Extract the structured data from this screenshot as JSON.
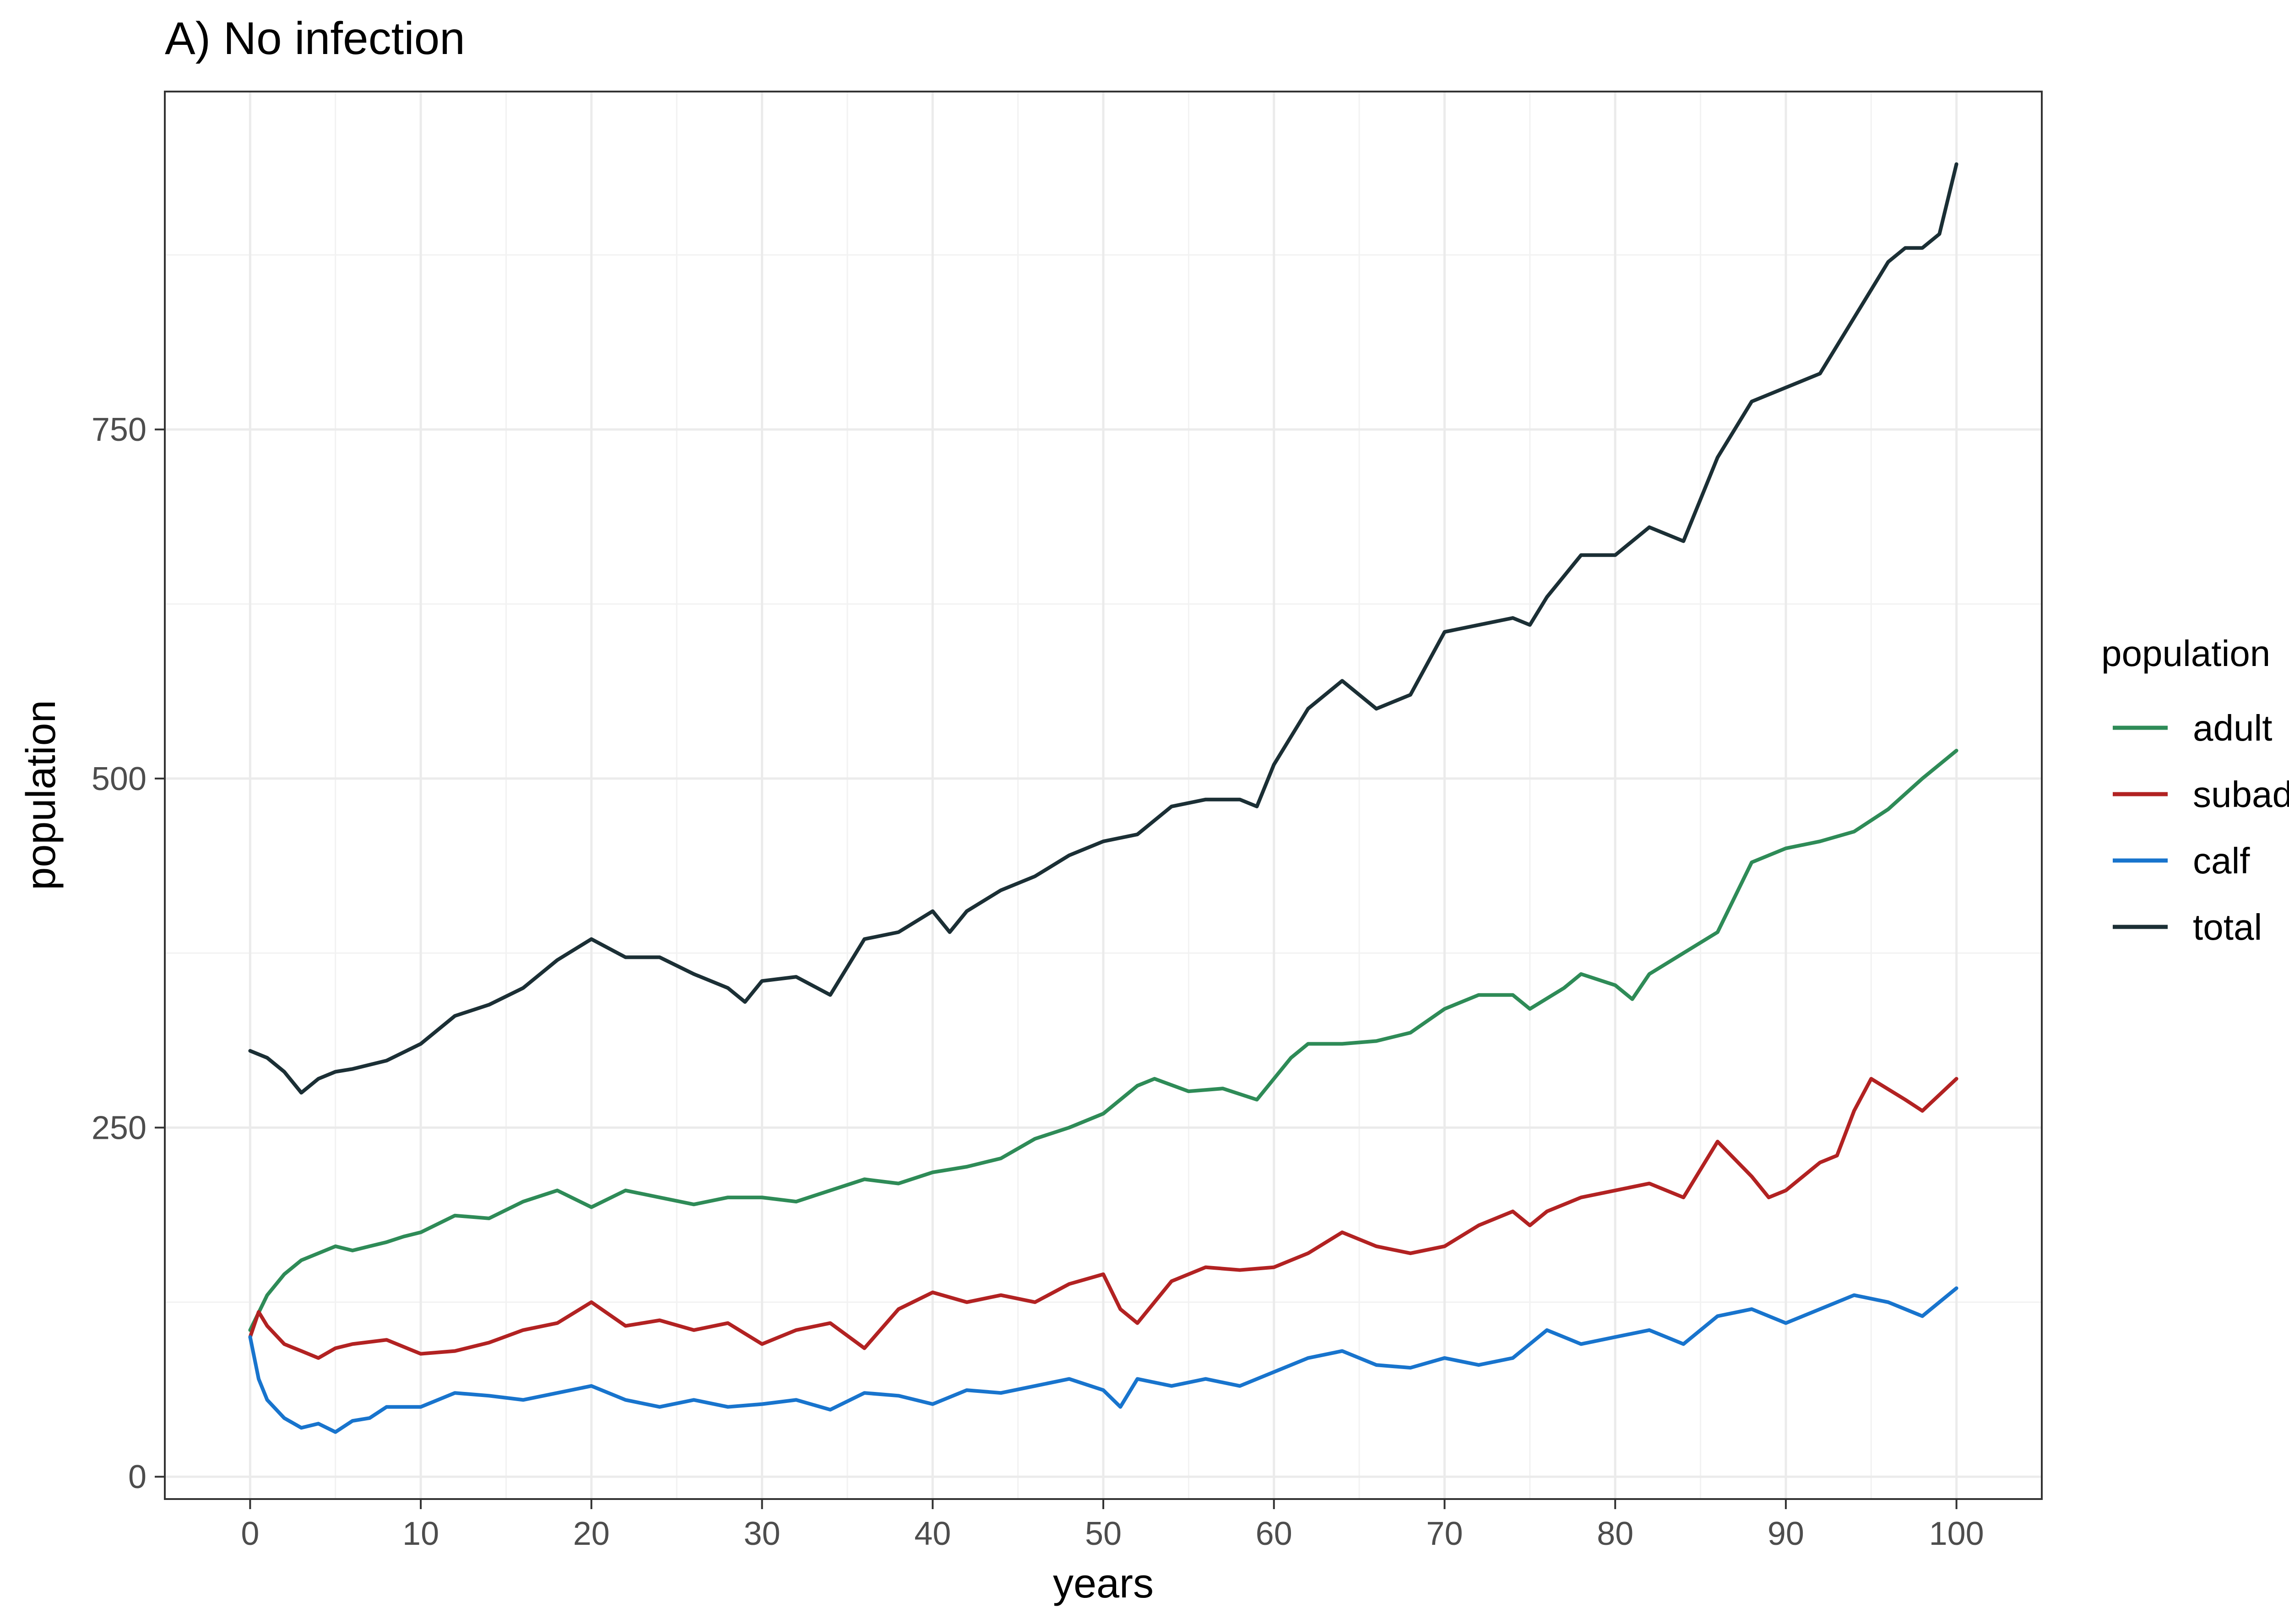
{
  "chart_data": {
    "type": "line",
    "title": "A) No infection",
    "xlabel": "years",
    "ylabel": "population",
    "xlim": [
      -5,
      105
    ],
    "ylim": [
      -16,
      992
    ],
    "x_ticks": [
      0,
      10,
      20,
      30,
      40,
      50,
      60,
      70,
      80,
      90,
      100
    ],
    "x_tick_labels": [
      "0",
      "10",
      "20",
      "30",
      "40",
      "50",
      "60",
      "70",
      "80",
      "90",
      "100"
    ],
    "y_ticks": [
      0,
      250,
      500,
      750
    ],
    "y_tick_labels": [
      "0",
      "250",
      "500",
      "750"
    ],
    "grid": true,
    "legend": {
      "title": "population",
      "position": "right"
    },
    "series": [
      {
        "name": "adult",
        "color": "#2e8b57",
        "x": [
          0,
          1,
          2,
          3,
          4,
          5,
          6,
          7,
          8,
          9,
          10,
          12,
          14,
          16,
          18,
          20,
          22,
          24,
          26,
          28,
          30,
          32,
          34,
          36,
          38,
          40,
          42,
          44,
          46,
          48,
          50,
          52,
          53,
          55,
          57,
          59,
          61,
          62,
          64,
          66,
          68,
          70,
          72,
          74,
          75,
          77,
          78,
          80,
          81,
          82,
          84,
          86,
          88,
          90,
          92,
          94,
          96,
          98,
          100
        ],
        "y": [
          105,
          130,
          145,
          155,
          160,
          165,
          162,
          165,
          168,
          172,
          175,
          187,
          185,
          197,
          205,
          193,
          205,
          200,
          195,
          200,
          200,
          197,
          205,
          213,
          210,
          218,
          222,
          228,
          242,
          250,
          260,
          280,
          285,
          276,
          278,
          270,
          300,
          310,
          310,
          312,
          318,
          335,
          345,
          345,
          335,
          350,
          360,
          352,
          342,
          360,
          375,
          390,
          440,
          450,
          455,
          462,
          478,
          500,
          520
        ]
      },
      {
        "name": "subadult",
        "color": "#b22222",
        "x": [
          0,
          0.5,
          1,
          2,
          3,
          4,
          5,
          6,
          8,
          10,
          12,
          14,
          16,
          18,
          20,
          22,
          24,
          26,
          28,
          30,
          32,
          34,
          36,
          38,
          40,
          42,
          44,
          46,
          48,
          50,
          51,
          52,
          54,
          56,
          58,
          60,
          62,
          64,
          66,
          68,
          70,
          72,
          74,
          75,
          76,
          78,
          80,
          82,
          84,
          86,
          88,
          89,
          90,
          92,
          93,
          94,
          95,
          97,
          98,
          100
        ],
        "y": [
          100,
          118,
          108,
          95,
          90,
          85,
          92,
          95,
          98,
          88,
          90,
          96,
          105,
          110,
          125,
          108,
          112,
          105,
          110,
          95,
          105,
          110,
          92,
          120,
          132,
          125,
          130,
          125,
          138,
          145,
          120,
          110,
          140,
          150,
          148,
          150,
          160,
          175,
          165,
          160,
          165,
          180,
          190,
          180,
          190,
          200,
          205,
          210,
          200,
          240,
          215,
          200,
          205,
          225,
          230,
          262,
          285,
          270,
          262,
          285
        ]
      },
      {
        "name": "calf",
        "color": "#1874cd",
        "x": [
          0,
          0.5,
          1,
          2,
          3,
          4,
          5,
          6,
          7,
          8,
          10,
          12,
          14,
          16,
          18,
          20,
          22,
          24,
          26,
          28,
          30,
          32,
          34,
          36,
          38,
          40,
          42,
          44,
          46,
          48,
          50,
          51,
          52,
          54,
          56,
          58,
          60,
          62,
          64,
          66,
          68,
          70,
          72,
          74,
          76,
          78,
          80,
          82,
          84,
          86,
          88,
          90,
          92,
          94,
          96,
          98,
          100
        ],
        "y": [
          100,
          70,
          55,
          42,
          35,
          38,
          32,
          40,
          42,
          50,
          50,
          60,
          58,
          55,
          60,
          65,
          55,
          50,
          55,
          50,
          52,
          55,
          48,
          60,
          58,
          52,
          62,
          60,
          65,
          70,
          62,
          50,
          70,
          65,
          70,
          65,
          75,
          85,
          90,
          80,
          78,
          85,
          80,
          85,
          105,
          95,
          100,
          105,
          95,
          115,
          120,
          110,
          120,
          130,
          125,
          115,
          135
        ]
      },
      {
        "name": "total",
        "color": "#1b2f35",
        "x": [
          0,
          1,
          2,
          3,
          4,
          5,
          6,
          8,
          10,
          12,
          14,
          16,
          18,
          20,
          22,
          24,
          26,
          28,
          29,
          30,
          32,
          34,
          36,
          38,
          40,
          41,
          42,
          44,
          46,
          48,
          50,
          52,
          54,
          56,
          58,
          59,
          60,
          62,
          64,
          66,
          68,
          70,
          72,
          74,
          75,
          76,
          78,
          80,
          82,
          84,
          86,
          88,
          90,
          92,
          94,
          96,
          97,
          98,
          99,
          100
        ],
        "y": [
          305,
          300,
          290,
          275,
          285,
          290,
          292,
          298,
          310,
          330,
          338,
          350,
          370,
          385,
          372,
          372,
          360,
          350,
          340,
          355,
          358,
          345,
          385,
          390,
          405,
          390,
          405,
          420,
          430,
          445,
          455,
          460,
          480,
          485,
          485,
          480,
          510,
          550,
          570,
          550,
          560,
          605,
          610,
          615,
          610,
          630,
          660,
          660,
          680,
          670,
          730,
          770,
          780,
          790,
          830,
          870,
          880,
          880,
          890,
          940
        ]
      }
    ]
  }
}
